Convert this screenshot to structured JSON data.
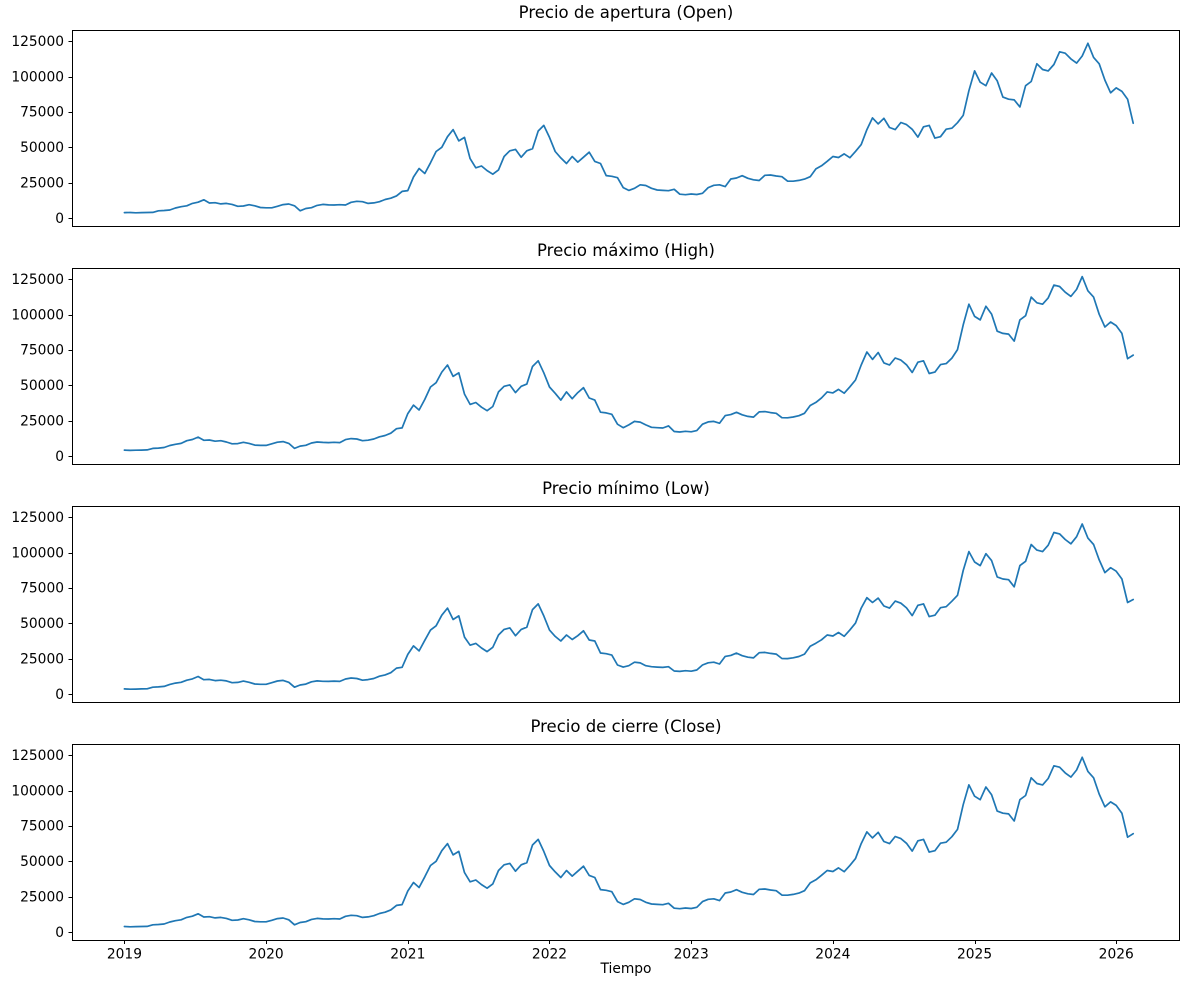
{
  "figure": {
    "background_color": "#ffffff",
    "text_color": "#000000"
  },
  "chart_data": {
    "type": "line",
    "line_color": "#1f77b4",
    "xlabel": "Tiempo",
    "grid": false,
    "legend_position": "none",
    "x_unit": "year",
    "x_range": [
      2019.0,
      2026.12
    ],
    "xlim": [
      2018.63,
      2026.45
    ],
    "ylim": [
      -6350,
      132900
    ],
    "xticks": [
      2019,
      2020,
      2021,
      2022,
      2023,
      2024,
      2025,
      2026
    ],
    "yticks": [
      0,
      25000,
      50000,
      75000,
      100000,
      125000
    ],
    "subplots": [
      {
        "title": "Precio de apertura (Open)",
        "series": "open"
      },
      {
        "title": "Precio máximo (High)",
        "series": "high"
      },
      {
        "title": "Precio mínimo (Low)",
        "series": "low"
      },
      {
        "title": "Precio de cierre (Close)",
        "series": "close"
      }
    ],
    "series": {
      "open": [
        3800,
        3900,
        3700,
        3800,
        3900,
        4000,
        5100,
        5300,
        5700,
        7100,
        8000,
        8600,
        10300,
        11200,
        12900,
        10600,
        10800,
        10000,
        10300,
        9600,
        8300,
        8500,
        9400,
        8600,
        7400,
        7200,
        7200,
        8300,
        9500,
        9900,
        8600,
        5100,
        6700,
        7300,
        8900,
        9600,
        9300,
        9200,
        9400,
        9200,
        11100,
        11800,
        11500,
        10300,
        10700,
        11500,
        13100,
        14000,
        15600,
        18800,
        19400,
        29000,
        35000,
        31500,
        39000,
        47000,
        50000,
        57500,
        62500,
        54500,
        57000,
        42000,
        35500,
        36800,
        33500,
        31000,
        34000,
        43500,
        47500,
        48500,
        43000,
        47500,
        49000,
        61500,
        65500,
        57000,
        47000,
        42500,
        38500,
        43500,
        39500,
        43000,
        46500,
        40000,
        38500,
        30000,
        29500,
        28500,
        21500,
        19500,
        21000,
        23500,
        23000,
        21000,
        19800,
        19500,
        19300,
        20300,
        16800,
        16500,
        17000,
        16600,
        17500,
        21500,
        23100,
        23500,
        22200,
        27600,
        28300,
        29900,
        28100,
        27000,
        26500,
        30200,
        30400,
        29700,
        29200,
        26100,
        26000,
        26600,
        27500,
        29200,
        34700,
        36900,
        40100,
        43500,
        42800,
        45300,
        42600,
        47100,
        51900,
        62500,
        70800,
        66500,
        70500,
        64000,
        62500,
        67500,
        66000,
        62700,
        57200,
        64500,
        65500,
        56500,
        57500,
        62800,
        63500,
        67400,
        72500,
        90000,
        104000,
        96000,
        93500,
        102500,
        97000,
        85500,
        84000,
        83500,
        78500,
        93500,
        96500,
        109000,
        105000,
        104000,
        108500,
        117500,
        116500,
        112500,
        109500,
        114500,
        123500,
        113500,
        109000,
        97500,
        88500,
        92000,
        89500,
        84000,
        67000
      ],
      "high": [
        4200,
        4000,
        4100,
        4200,
        4300,
        5400,
        5600,
        6000,
        7400,
        8300,
        8900,
        10800,
        11700,
        13400,
        11100,
        11300,
        10500,
        10800,
        9900,
        8600,
        8800,
        9700,
        8900,
        7700,
        7500,
        7500,
        8600,
        9800,
        10200,
        8900,
        5400,
        7000,
        7600,
        9200,
        9900,
        9600,
        9500,
        9700,
        9500,
        11600,
        12300,
        12000,
        10800,
        11200,
        12000,
        13600,
        14500,
        16100,
        19300,
        19900,
        30000,
        36000,
        32500,
        40000,
        48800,
        51800,
        59300,
        64300,
        56300,
        58800,
        43800,
        36500,
        37800,
        34500,
        32000,
        35000,
        45300,
        49300,
        50300,
        44800,
        49300,
        50800,
        63300,
        67300,
        58800,
        48800,
        44300,
        39500,
        45300,
        40500,
        44800,
        48300,
        41000,
        39500,
        31000,
        30500,
        29500,
        22500,
        20000,
        22000,
        24500,
        24000,
        22000,
        20300,
        20000,
        19800,
        21300,
        17300,
        17000,
        17500,
        17100,
        18000,
        22500,
        24100,
        24500,
        23200,
        28600,
        29300,
        30900,
        29100,
        28000,
        27500,
        31200,
        31400,
        30700,
        30200,
        27100,
        27000,
        27600,
        28500,
        30200,
        35700,
        37900,
        41100,
        45300,
        44600,
        47100,
        44400,
        48900,
        53700,
        64300,
        73500,
        68300,
        73200,
        65800,
        64300,
        69300,
        67800,
        64500,
        59000,
        66300,
        67300,
        58300,
        59300,
        64600,
        65300,
        69200,
        75200,
        92700,
        107300,
        98700,
        96200,
        105800,
        100300,
        88200,
        86700,
        86200,
        81200,
        96200,
        99200,
        112300,
        108300,
        107300,
        111800,
        120800,
        119800,
        115800,
        112800,
        117800,
        126800,
        116800,
        112300,
        100200,
        91200,
        94700,
        92200,
        86700,
        68800,
        71300
      ],
      "low": [
        3600,
        3400,
        3500,
        3600,
        3700,
        4800,
        5000,
        5400,
        6800,
        7700,
        8300,
        9800,
        10700,
        12400,
        10100,
        10300,
        9500,
        9800,
        9300,
        8000,
        8200,
        9100,
        8300,
        7100,
        6900,
        6900,
        8000,
        9200,
        9600,
        8300,
        4800,
        6400,
        7000,
        8600,
        9300,
        9000,
        8900,
        9100,
        8900,
        10600,
        11300,
        11000,
        9800,
        10200,
        11000,
        12600,
        13500,
        15100,
        18300,
        18900,
        28000,
        34000,
        30500,
        38000,
        45200,
        48200,
        55700,
        60700,
        52700,
        55200,
        40200,
        34500,
        35800,
        32500,
        30000,
        33000,
        41700,
        45700,
        46700,
        41200,
        45700,
        47200,
        59700,
        63700,
        55200,
        45200,
        40700,
        37500,
        41700,
        38500,
        41200,
        44700,
        38200,
        37500,
        29000,
        28500,
        27500,
        20500,
        19000,
        20000,
        22500,
        22000,
        20000,
        19300,
        19000,
        18800,
        19300,
        16300,
        16000,
        16500,
        16100,
        17000,
        20500,
        22100,
        22500,
        21200,
        26600,
        27300,
        28900,
        27100,
        26000,
        25500,
        29200,
        29400,
        28700,
        28200,
        25100,
        25000,
        25600,
        26500,
        28200,
        33700,
        35900,
        38300,
        41700,
        41000,
        43500,
        40800,
        45300,
        50100,
        60700,
        68100,
        64700,
        67800,
        62200,
        60700,
        65700,
        64200,
        60900,
        55400,
        62700,
        63700,
        54700,
        55700,
        61000,
        61700,
        65600,
        69800,
        87300,
        100700,
        93300,
        90800,
        99200,
        94300,
        82800,
        81300,
        80800,
        75800,
        90800,
        93800,
        105700,
        101700,
        100700,
        105200,
        114200,
        113200,
        109200,
        106200,
        111200,
        120200,
        110200,
        105700,
        94800,
        85800,
        89300,
        86800,
        81300,
        64700,
        66800
      ],
      "close": [
        3900,
        3700,
        3800,
        3900,
        4000,
        5100,
        5300,
        5700,
        7100,
        8000,
        8600,
        10300,
        11200,
        12900,
        10600,
        10800,
        10000,
        10300,
        9600,
        8300,
        8500,
        9400,
        8600,
        7400,
        7200,
        7200,
        8300,
        9500,
        9900,
        8600,
        5100,
        6700,
        7300,
        8900,
        9600,
        9300,
        9200,
        9400,
        9200,
        11100,
        11800,
        11500,
        10300,
        10700,
        11500,
        13100,
        14000,
        15600,
        18800,
        19400,
        29000,
        35000,
        31500,
        39000,
        47000,
        50000,
        57500,
        62500,
        54500,
        57000,
        42000,
        35500,
        36800,
        33500,
        31000,
        34000,
        43500,
        47500,
        48500,
        43000,
        47500,
        49000,
        61500,
        65500,
        57000,
        47000,
        42500,
        38500,
        43500,
        39500,
        43000,
        46500,
        40000,
        38500,
        30000,
        29500,
        28500,
        21500,
        19500,
        21000,
        23500,
        23000,
        21000,
        19800,
        19500,
        19300,
        20300,
        16800,
        16500,
        17000,
        16600,
        17500,
        21500,
        23100,
        23500,
        22200,
        27600,
        28300,
        29900,
        28100,
        27000,
        26500,
        30200,
        30400,
        29700,
        29200,
        26100,
        26000,
        26600,
        27500,
        29200,
        34700,
        36900,
        40100,
        43500,
        42800,
        45300,
        42600,
        47100,
        51900,
        62500,
        70800,
        66500,
        70500,
        64000,
        62500,
        67500,
        66000,
        62700,
        57200,
        64500,
        65500,
        56500,
        57500,
        62800,
        63500,
        67400,
        72500,
        90000,
        104000,
        96000,
        93500,
        102500,
        97000,
        85500,
        84000,
        83500,
        78500,
        93500,
        96500,
        109000,
        105000,
        104000,
        108500,
        117500,
        116500,
        112500,
        109500,
        114500,
        123500,
        113500,
        109000,
        97500,
        88500,
        92000,
        89500,
        84000,
        67000,
        69500
      ]
    }
  }
}
